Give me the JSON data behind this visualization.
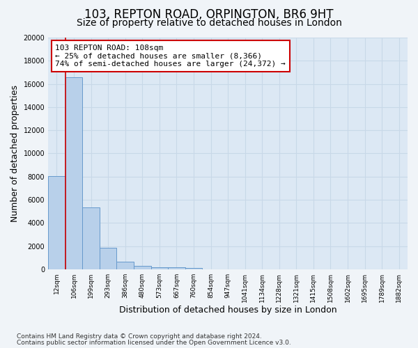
{
  "title1": "103, REPTON ROAD, ORPINGTON, BR6 9HT",
  "title2": "Size of property relative to detached houses in London",
  "xlabel": "Distribution of detached houses by size in London",
  "ylabel": "Number of detached properties",
  "footnote1": "Contains HM Land Registry data © Crown copyright and database right 2024.",
  "footnote2": "Contains public sector information licensed under the Open Government Licence v3.0.",
  "annotation_line1": "103 REPTON ROAD: 108sqm",
  "annotation_line2": "← 25% of detached houses are smaller (8,366)",
  "annotation_line3": "74% of semi-detached houses are larger (24,372) →",
  "bar_labels": [
    "12sqm",
    "106sqm",
    "199sqm",
    "293sqm",
    "386sqm",
    "480sqm",
    "573sqm",
    "667sqm",
    "760sqm",
    "854sqm",
    "947sqm",
    "1041sqm",
    "1134sqm",
    "1228sqm",
    "1321sqm",
    "1415sqm",
    "1508sqm",
    "1602sqm",
    "1695sqm",
    "1789sqm",
    "1882sqm"
  ],
  "bar_values": [
    8050,
    16550,
    5350,
    1850,
    680,
    325,
    200,
    170,
    145,
    0,
    0,
    0,
    0,
    0,
    0,
    0,
    0,
    0,
    0,
    0,
    0
  ],
  "bar_color": "#b8d0ea",
  "bar_edge_color": "#6699cc",
  "marker_color": "#cc0000",
  "ylim_max": 20000,
  "yticks": [
    0,
    2000,
    4000,
    6000,
    8000,
    10000,
    12000,
    14000,
    16000,
    18000,
    20000
  ],
  "annotation_box_edge_color": "#cc0000",
  "fig_bg_color": "#f0f4f8",
  "axes_bg_color": "#dce8f4",
  "grid_color": "#c8d8e8",
  "title1_fontsize": 12,
  "title2_fontsize": 10,
  "axis_label_fontsize": 9,
  "tick_fontsize": 7,
  "annotation_fontsize": 8,
  "footnote_fontsize": 6.5,
  "red_line_x": 0.5
}
